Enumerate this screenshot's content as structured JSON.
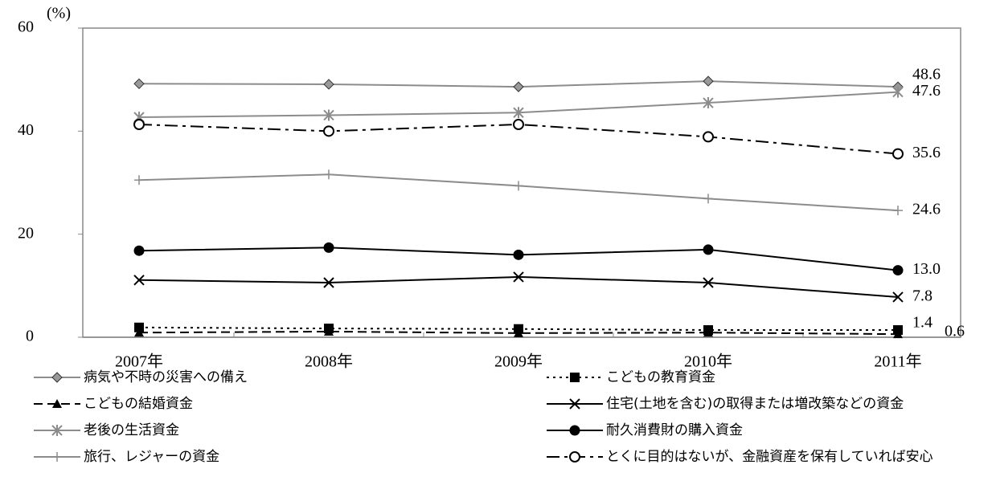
{
  "chart_data": {
    "type": "line",
    "y_label": "(%)",
    "categories": [
      "2007年",
      "2008年",
      "2009年",
      "2010年",
      "2011年"
    ],
    "ylim": [
      0,
      60
    ],
    "yticks": [
      0,
      20,
      40,
      60
    ],
    "series": [
      {
        "name": "病気や不時の災害への備え",
        "color": "#8c8c8c",
        "marker": "diamond",
        "line_style": "solid",
        "values": [
          49.2,
          49.1,
          48.6,
          49.7,
          48.6
        ],
        "value_labels": [
          null,
          null,
          null,
          null,
          "48.6"
        ]
      },
      {
        "name": "こどもの教育資金",
        "color": "#000000",
        "marker": "square",
        "line_style": "dotted",
        "values": [
          1.9,
          1.7,
          1.6,
          1.4,
          1.4
        ],
        "value_labels": [
          null,
          null,
          null,
          null,
          "1.4"
        ]
      },
      {
        "name": "こどもの結婚資金",
        "color": "#000000",
        "marker": "triangle",
        "line_style": "dashed",
        "values": [
          0.9,
          1.1,
          0.8,
          0.9,
          0.6
        ],
        "value_labels": [
          null,
          null,
          null,
          null,
          "0.6"
        ]
      },
      {
        "name": "住宅(土地を含む)の取得または増改築などの資金",
        "color": "#000000",
        "marker": "x",
        "line_style": "solid",
        "values": [
          11.1,
          10.6,
          11.7,
          10.6,
          7.8
        ],
        "value_labels": [
          null,
          null,
          null,
          null,
          "7.8"
        ]
      },
      {
        "name": "老後の生活資金",
        "color": "#8c8c8c",
        "marker": "asterisk",
        "line_style": "solid",
        "values": [
          42.7,
          43.1,
          43.6,
          45.5,
          47.6
        ],
        "value_labels": [
          null,
          null,
          null,
          null,
          "47.6"
        ]
      },
      {
        "name": "耐久消費財の購入資金",
        "color": "#000000",
        "marker": "circle",
        "line_style": "solid",
        "values": [
          16.8,
          17.4,
          16.0,
          17.0,
          13.0
        ],
        "value_labels": [
          null,
          null,
          null,
          null,
          "13.0"
        ]
      },
      {
        "name": "旅行、レジャーの資金",
        "color": "#8c8c8c",
        "marker": "plus",
        "line_style": "solid",
        "values": [
          30.5,
          31.6,
          29.4,
          26.9,
          24.6
        ],
        "value_labels": [
          null,
          null,
          null,
          null,
          "24.6"
        ]
      },
      {
        "name": "とくに目的はないが、金融資産を保有していれば安心",
        "color": "#000000",
        "marker": "open-circle",
        "line_style": "dash-dot",
        "values": [
          41.3,
          40.0,
          41.3,
          38.9,
          35.6
        ],
        "value_labels": [
          null,
          null,
          null,
          null,
          "35.6"
        ]
      }
    ]
  }
}
